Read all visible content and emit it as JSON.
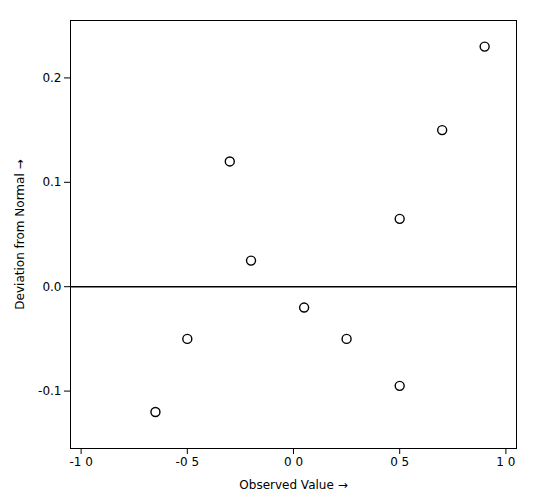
{
  "chart_data": {
    "type": "scatter",
    "x": [
      0.9,
      0.7,
      0.5,
      -0.3,
      -0.2,
      0.05,
      -0.5,
      0.25,
      0.5,
      -0.65
    ],
    "values": [
      0.23,
      0.15,
      0.065,
      0.12,
      0.025,
      -0.02,
      -0.05,
      -0.05,
      -0.095,
      -0.12
    ],
    "xlabel": "Observed Value",
    "ylabel": "Deviation from Normal",
    "xlim": [
      -1.05,
      1.05
    ],
    "ylim": [
      -0.155,
      0.255
    ],
    "xticks": [
      {
        "value": -1.0,
        "label": "-1 0"
      },
      {
        "value": -0.5,
        "label": "-0 5"
      },
      {
        "value": 0.0,
        "label": "0 0"
      },
      {
        "value": 0.5,
        "label": "0 5"
      },
      {
        "value": 1.0,
        "label": "1 0"
      }
    ],
    "yticks": [
      -0.1,
      {
        "value": 0.0,
        "label": "0.0"
      },
      0.1,
      0.2
    ],
    "hline": 0.0,
    "marker": "circle",
    "grid": false
  }
}
